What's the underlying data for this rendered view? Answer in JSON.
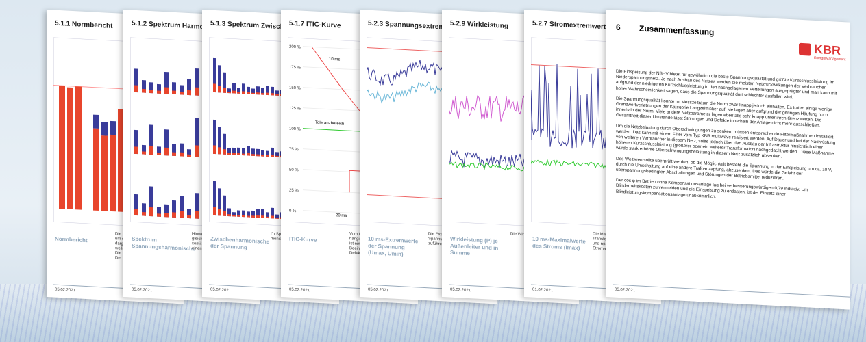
{
  "pages": [
    {
      "title": "5.1.1 Normbericht",
      "caption": "Normbericht",
      "body": [
        "Die Norm u",
        "um die höch",
        "dargestellt, d",
        "weiligen Gre",
        "Die Kategori",
        "Der THD-U ("
      ],
      "date": "05.02.2021"
    },
    {
      "title": "5.1.2 Spektrum Harmonische de",
      "caption": "Spektrum Spannungsharmonische",
      "body": [
        "Hinweis",
        "gleichzeitig",
        "somit le",
        "einem s"
      ],
      "date": "05.02.2021"
    },
    {
      "title": "5.1.3 Spektrum Zwischenharmo",
      "caption": "Zwischenharmonische der Spannung",
      "body": [
        "I'n Spe",
        "monisc"
      ],
      "date": "05.02.202"
    },
    {
      "title": "5.1.7 ITIC-Kurve",
      "caption": "ITIC-Kurve",
      "body": [
        "Vom ITI",
        "hängig",
        "ist ein",
        "Beeinfl",
        "Defekt"
      ],
      "date": "05.02.2021",
      "itic": {
        "yaxis": [
          "200 %",
          "175 %",
          "150 %",
          "125 %",
          "100 %",
          "75 %",
          "50 %",
          "25 %",
          "0 %"
        ],
        "top": [
          "10 ms",
          "100 ms"
        ],
        "bottom": "20 ms",
        "band": "Toleranzbereich"
      }
    },
    {
      "title": "5.2.3 Spannungsextremwerte",
      "caption": "10 ms-Extremwerte der Spannung (Umax, Umin)",
      "body": [
        "Die Extrem",
        "Spannungs",
        "zuführen."
      ],
      "date": "05.02.2021"
    },
    {
      "title": "5.2.9 Wirkleistung",
      "caption": "Wirkleistung (P) je Außenleiter und in Summe",
      "body": [
        "Die Wirkl"
      ],
      "date": "05.02.2021"
    },
    {
      "title": "5.2.7 Stromextremwerte",
      "caption": "10 ms-Maximalwerte des Stroms (Imax)",
      "body": [
        "Die Maxima",
        "Transforma",
        "und reicht",
        "Stromasst"
      ],
      "date": "01.02.2021"
    }
  ],
  "summary": {
    "number": "6",
    "title": "Zusammenfassung",
    "logo": "KBR",
    "logo_sub": "EnergieManagement",
    "paragraphs": [
      "Die Einspeisung der NSHV bietet für gewöhnlich die beste Spannungsqualität und größte Kurzschlussleistung im Niederspannungsnetz. Je nach Ausbau des Netzes werden die meisten Netzrückwirkungen der Verbraucher aufgrund der niedrigeren Kurzschlussleistung in den nachgelagerten Verteilungen ausgeprägter und man kann mit hoher Wahrscheinlichkeit sagen, dass die Spannungsqualität dort schlechter ausfallen wird.",
      "Die Spannungsqualität konnte im Messzeitraum die Norm zwar knapp jedoch einhalten. Es traten einige wenige Grenzwertverletzungen der Kategorie Langzeitflicker auf, sie lagen aber aufgrund der geringen Häufung noch innerhalb der Norm. Viele andere Netzparameter lagen ebenfalls sehr knapp unter ihren Grenzwerten. Die Gesamtheit dieser Umstände lässt Störungen und Defekte innerhalb der Anlage nicht mehr ausschließen.",
      "Um die Netzbelastung durch Oberschwingungen zu senken, müssen entsprechende Filtermaßnahmen installiert werden. Das kann mit einem Filter vom Typ KBR multiwave realisiert werden. Auf Dauer und bei der Nachrüstung von weiteren Verbraucher in diesem Netz, sollte jedoch über den Ausbau der Infrastruktur hinsichtlich einer höheren Kurzschlussleistung (größerer oder ein weiterer Transformator) nachgedacht werden. Diese Maßnahme würde stark erhöhte Oberschwingungsbelastung in diesem Netz zusätzlich absenken.",
      "Des Weiteren sollte überprüft werden, ob die Möglichkeit besteht die Spannung in der Einspeisung um ca. 10 V, durch die Umschaltung auf eine andere Trafoanzapfung, abzusenken. Das würde die Gefahr der überspannungsbedingten Abschaltungen und Störungen der Betriebsmittel reduzieren.",
      "Der cos φ im Betrieb ohne Kompensationsanlage lag bei verbesserungswürdigen 0,79 induktiv. Um Blindarbeitskosten zu vermeiden und die Einspeisung zu entlasten, ist der Einsatz einer Blindleistungskompensationsanlage unabkömmlich."
    ],
    "date": "05.02.2021"
  }
}
